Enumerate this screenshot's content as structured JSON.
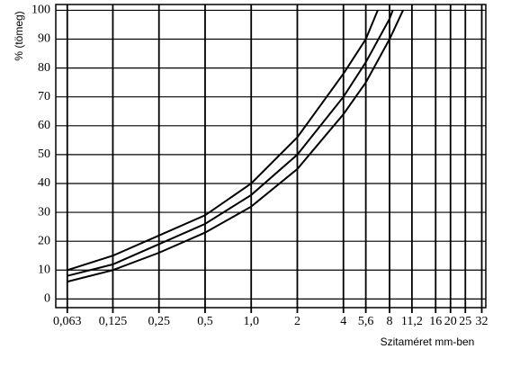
{
  "chart_data": {
    "type": "line",
    "ylabel": "% (tömeg)",
    "xlabel": "Szitaméret mm-ben",
    "xscale": "log",
    "xlim": [
      0.053,
      34
    ],
    "ylim": [
      -3,
      102
    ],
    "xticks": [
      {
        "value": 0.063,
        "label": "0,063"
      },
      {
        "value": 0.125,
        "label": "0,125"
      },
      {
        "value": 0.25,
        "label": "0,25"
      },
      {
        "value": 0.5,
        "label": "0,5"
      },
      {
        "value": 1,
        "label": "1,0"
      },
      2,
      4,
      {
        "value": 5.6,
        "label": "5,6"
      },
      8,
      {
        "value": 11.2,
        "label": "11,2"
      },
      16,
      20,
      25,
      32
    ],
    "yticks": [
      0,
      10,
      20,
      30,
      40,
      50,
      60,
      70,
      80,
      90,
      100
    ],
    "grid": true,
    "color": "#000000",
    "series": [
      {
        "x": [
          0.063,
          0.125,
          0.25,
          0.5,
          1,
          2,
          4,
          5.6,
          6.7
        ],
        "values": [
          10,
          15,
          22,
          29,
          40,
          56,
          78,
          90,
          100
        ]
      },
      {
        "x": [
          0.063,
          0.125,
          0.25,
          0.5,
          1,
          2,
          4,
          5.6,
          8,
          8.4
        ],
        "values": [
          8,
          12,
          19,
          26,
          36,
          50,
          70,
          82,
          97,
          100
        ]
      },
      {
        "x": [
          0.063,
          0.125,
          0.25,
          0.5,
          1,
          2,
          4,
          5.6,
          8,
          9.8
        ],
        "values": [
          6,
          10,
          16,
          23,
          32,
          45,
          64,
          75,
          90,
          100
        ]
      }
    ]
  }
}
